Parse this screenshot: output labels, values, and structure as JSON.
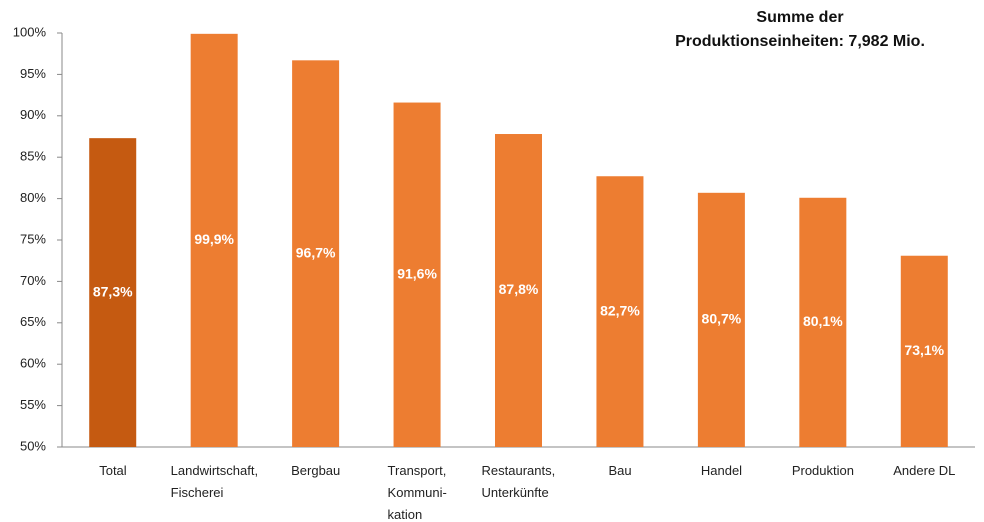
{
  "chart_data": {
    "type": "bar",
    "title": "Summe der\nProduktionseinheiten: 7,982 Mio.",
    "categories": [
      "Total",
      "Landwirtschaft,\nFischerei",
      "Bergbau",
      "Transport,\nKommuni-\nkation",
      "Restaurants,\nUnterkünfte",
      "Bau",
      "Handel",
      "Produktion",
      "Andere DL"
    ],
    "values": [
      87.3,
      99.9,
      96.7,
      91.6,
      87.8,
      82.7,
      80.7,
      80.1,
      73.1
    ],
    "value_labels": [
      "87,3%",
      "99,9%",
      "96,7%",
      "91,6%",
      "87,8%",
      "82,7%",
      "80,7%",
      "80,1%",
      "73,1%"
    ],
    "colors": [
      "#c55a11",
      "#ed7d31",
      "#ed7d31",
      "#ed7d31",
      "#ed7d31",
      "#ed7d31",
      "#ed7d31",
      "#ed7d31",
      "#ed7d31"
    ],
    "ylim": [
      50,
      100
    ],
    "yticks": [
      {
        "value": 50,
        "label": "50%"
      },
      {
        "value": 55,
        "label": "55%"
      },
      {
        "value": 60,
        "label": "60%"
      },
      {
        "value": 65,
        "label": "65%"
      },
      {
        "value": 70,
        "label": "70%"
      },
      {
        "value": 75,
        "label": "75%"
      },
      {
        "value": 80,
        "label": "80%"
      },
      {
        "value": 85,
        "label": "85%"
      },
      {
        "value": 90,
        "label": "90%"
      },
      {
        "value": 95,
        "label": "95%"
      },
      {
        "value": 100,
        "label": "100%"
      }
    ],
    "grid": false
  }
}
